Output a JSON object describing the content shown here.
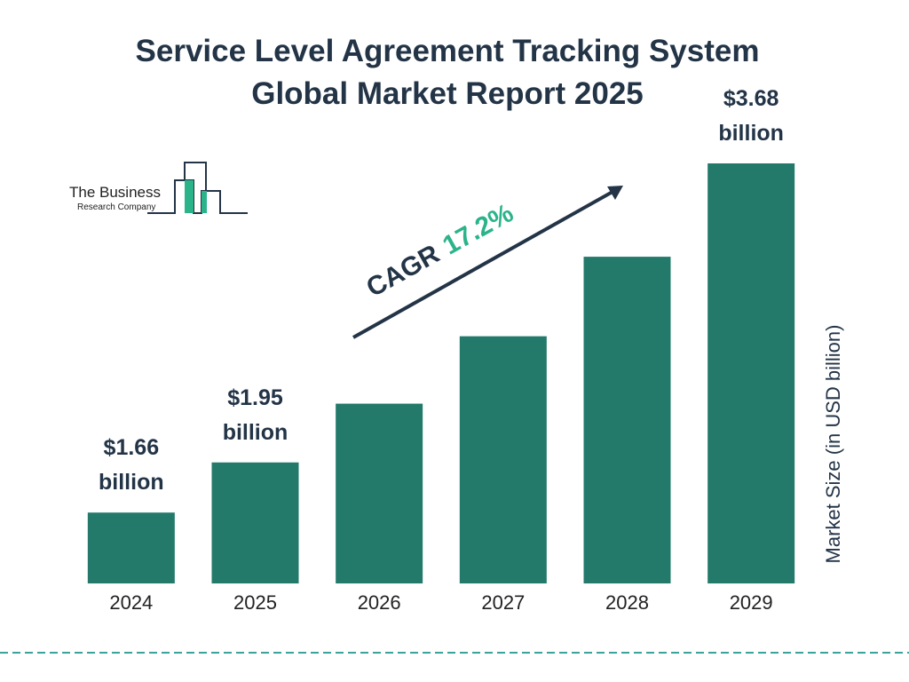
{
  "chart_data": {
    "type": "bar",
    "title": "Service Level Agreement Tracking System Global Market Report 2025",
    "categories": [
      "2024",
      "2025",
      "2026",
      "2027",
      "2028",
      "2029"
    ],
    "values": [
      1.66,
      1.95,
      2.29,
      2.68,
      3.14,
      3.68
    ],
    "value_labels": [
      "$1.66 billion",
      "$1.95 billion",
      null,
      null,
      null,
      "$3.68 billion"
    ],
    "color": "#237a6b",
    "ylim": [
      1.25,
      3.68
    ],
    "y_axis_label": "Market Size (in USD billion)",
    "annotation": {
      "label": "CAGR",
      "value": "17.2%"
    },
    "logo": {
      "line1": "The Business",
      "line2": "Research Company"
    }
  }
}
